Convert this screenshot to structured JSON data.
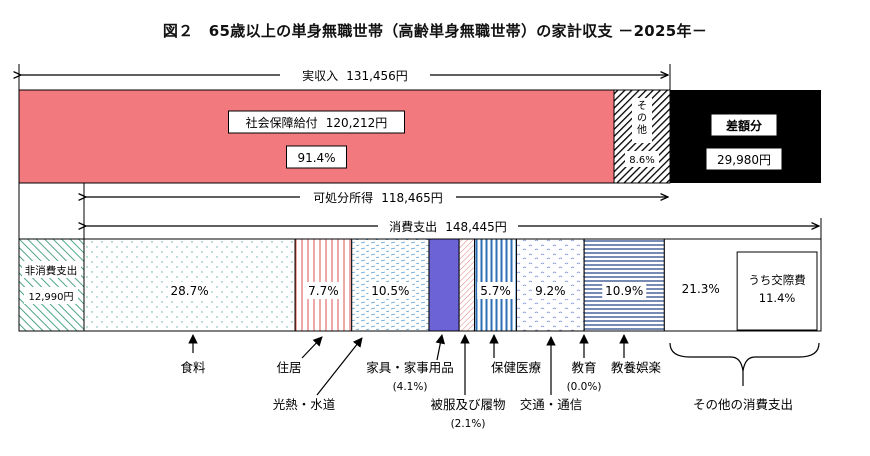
{
  "title": "図２　65歳以上の単身無職世帯（高齢単身無職世帯）の家計収支 －2025年－",
  "colors": {
    "social": "#f27a7e",
    "surplus": "#000000",
    "food_dots": "#5aa9a4",
    "housing": "#d9534f",
    "utilities": "#5a9fd4",
    "furniture": "#6b63d6",
    "clothing": "#e08080",
    "medical": "#2f6fb5",
    "transport": "#7a8fd6",
    "recreation": "#2e4a8a",
    "nonconsumption": "#3a9a7a"
  },
  "chart_data": {
    "type": "bar",
    "title": "図２　65歳以上の単身無職世帯（高齢単身無職世帯）の家計収支 －2025年－",
    "units": "円",
    "income": {
      "label": "実収入",
      "value": "131,456円",
      "segments": [
        {
          "name": "社会保障給付",
          "value_text": "120,212円",
          "share_text": "91.4%",
          "share": 91.4
        },
        {
          "name": "その他",
          "share_text": "8.6%",
          "share": 8.6
        }
      ],
      "deficit": {
        "name": "差額分",
        "value_text": "29,980円"
      }
    },
    "disposable": {
      "label": "可処分所得",
      "value": "118,465円"
    },
    "consumption": {
      "label": "消費支出",
      "value": "148,445円"
    },
    "non_consumption": {
      "name": "非消費支出",
      "value_text": "12,990円"
    },
    "expenses": [
      {
        "key": "food",
        "name": "食料",
        "share": 28.7,
        "label": "28.7%"
      },
      {
        "key": "housing",
        "name": "住居",
        "share": 7.7,
        "label": "7.7%"
      },
      {
        "key": "utilities",
        "name": "光熱・水道",
        "share": 10.5,
        "label": "10.5%"
      },
      {
        "key": "furniture",
        "name": "家具・家事用品",
        "share": 4.1,
        "sub": "(4.1%)"
      },
      {
        "key": "clothing",
        "name": "被服及び履物",
        "share": 2.1,
        "sub": "(2.1%)"
      },
      {
        "key": "medical",
        "name": "保健医療",
        "share": 5.7,
        "label": "5.7%"
      },
      {
        "key": "transport",
        "name": "交通・通信",
        "share": 9.2,
        "label": "9.2%"
      },
      {
        "key": "education",
        "name": "教育",
        "share": 0.0,
        "sub": "(0.0%)"
      },
      {
        "key": "recreation",
        "name": "教養娯楽",
        "share": 10.9,
        "label": "10.9%"
      },
      {
        "key": "other",
        "name": "その他の消費支出",
        "share": 21.3,
        "label": "21.3%",
        "inner": {
          "name": "うち交際費",
          "share": 11.4,
          "label": "11.4%"
        }
      }
    ]
  }
}
